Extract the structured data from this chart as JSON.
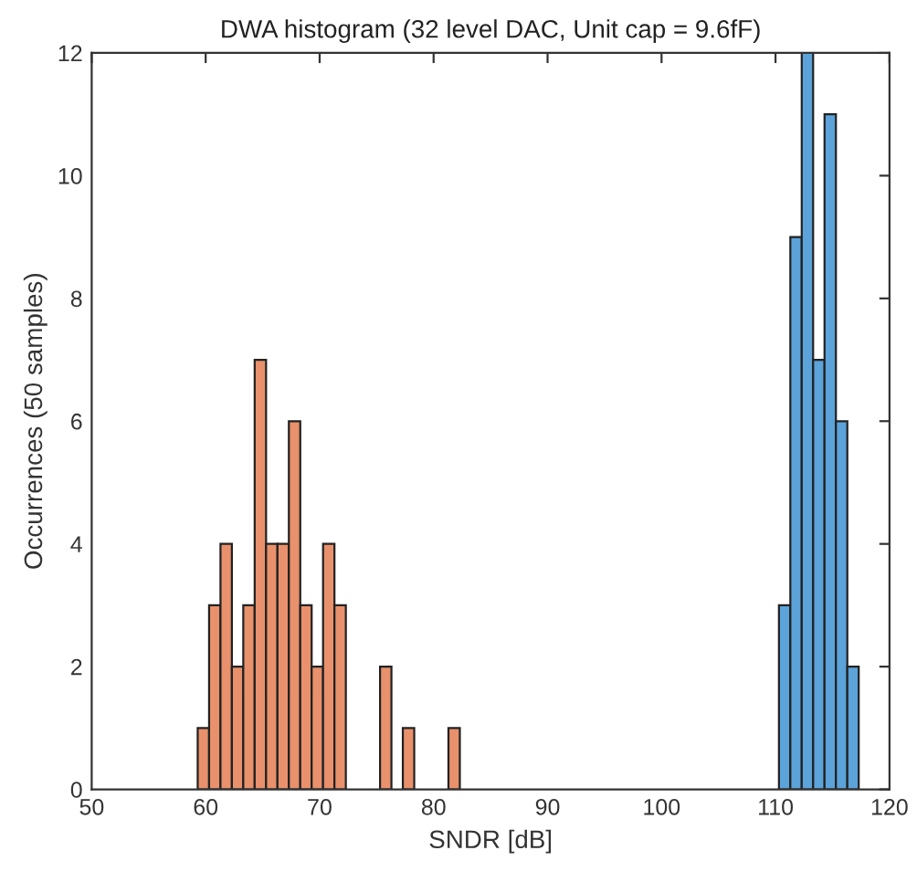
{
  "chart_data": {
    "type": "histogram",
    "title": "DWA histogram (32 level DAC, Unit cap = 9.6fF)",
    "xlabel": "SNDR [dB]",
    "ylabel": "Occurrences (50 samples)",
    "xlim": [
      50,
      120
    ],
    "xticks": [
      50,
      60,
      70,
      80,
      90,
      100,
      110,
      120
    ],
    "ylim": [
      0,
      12
    ],
    "yticks": [
      0,
      2,
      4,
      6,
      8,
      10,
      12
    ],
    "grid": false,
    "legend": false,
    "bins": [
      59.3,
      60.3,
      61.3,
      62.3,
      63.3,
      64.3,
      65.3,
      66.3,
      67.3,
      68.3,
      69.3,
      70.3,
      71.3,
      72.3,
      73.3,
      74.3,
      75.3,
      76.3,
      77.3,
      78.3,
      79.3,
      80.3,
      81.3,
      82.3,
      83.3,
      84.3,
      85.3,
      86.3,
      87.3,
      88.3,
      89.3,
      90.3,
      91.3,
      92.3,
      93.3,
      94.3,
      95.3,
      96.3,
      97.3,
      98.3,
      99.3,
      100.3,
      101.3,
      102.3,
      103.3,
      104.3,
      105.3,
      106.3,
      107.3,
      108.3,
      109.3,
      110.3,
      111.3,
      112.3,
      113.3,
      114.3,
      115.3,
      116.3,
      117.3
    ],
    "series": [
      {
        "color": "#e8916c",
        "values": [
          1,
          3,
          4,
          2,
          3,
          7,
          4,
          4,
          6,
          3,
          2,
          4,
          3,
          0,
          0,
          0,
          2,
          0,
          1,
          0,
          0,
          0,
          1,
          0,
          0,
          0,
          0,
          0,
          0,
          0,
          0,
          0,
          0,
          0,
          0,
          0,
          0,
          0,
          0,
          0,
          0,
          0,
          0,
          0,
          0,
          0,
          0,
          0,
          0,
          0,
          0,
          0,
          0,
          0,
          0,
          0,
          0,
          0
        ]
      },
      {
        "color": "#5ba3d9",
        "values": [
          0,
          0,
          0,
          0,
          0,
          0,
          0,
          0,
          0,
          0,
          0,
          0,
          0,
          0,
          0,
          0,
          0,
          0,
          0,
          0,
          0,
          0,
          0,
          0,
          0,
          0,
          0,
          0,
          0,
          0,
          0,
          0,
          0,
          0,
          0,
          0,
          0,
          0,
          0,
          0,
          0,
          0,
          0,
          0,
          0,
          0,
          0,
          0,
          0,
          0,
          0,
          3,
          9,
          12,
          7,
          11,
          6,
          2
        ]
      }
    ]
  }
}
